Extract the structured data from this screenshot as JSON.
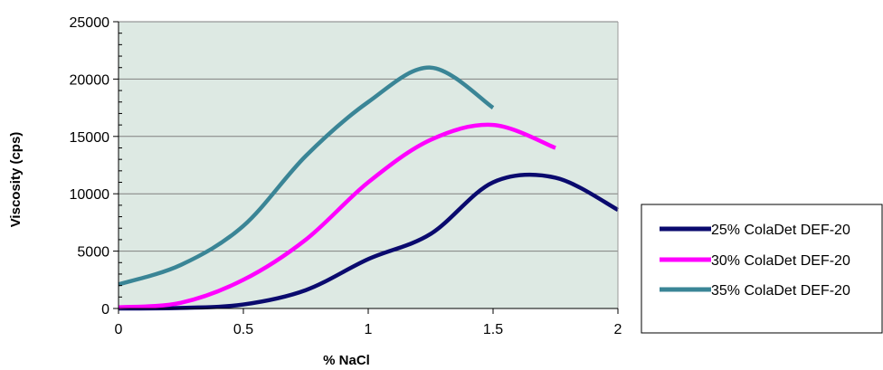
{
  "chart_data": {
    "type": "line",
    "title": "",
    "xlabel": "% NaCl",
    "ylabel": "Viscosity (cps)",
    "xlim": [
      0,
      2
    ],
    "ylim": [
      0,
      25000
    ],
    "x_ticks": [
      "0",
      "0.5",
      "1",
      "1.5",
      "2"
    ],
    "y_ticks": [
      "0",
      "5000",
      "10000",
      "15000",
      "20000",
      "25000"
    ],
    "grid": "horizontal",
    "plot_background": "#dde9e3",
    "legend_position": "right",
    "series": [
      {
        "name": "25% ColaDet DEF-20",
        "color": "#0a0a6e",
        "x": [
          0,
          0.25,
          0.5,
          0.75,
          1,
          1.25,
          1.5,
          1.75,
          2
        ],
        "y": [
          0,
          50,
          350,
          1600,
          4300,
          6500,
          11000,
          11400,
          8600
        ]
      },
      {
        "name": "30% ColaDet DEF-20",
        "color": "#ff00ff",
        "x": [
          0,
          0.25,
          0.5,
          0.75,
          1,
          1.25,
          1.5,
          1.75
        ],
        "y": [
          100,
          500,
          2500,
          6000,
          11000,
          14700,
          16000,
          14000
        ]
      },
      {
        "name": "35% ColaDet DEF-20",
        "color": "#3a8596",
        "x": [
          0,
          0.25,
          0.5,
          0.75,
          1,
          1.25,
          1.5
        ],
        "y": [
          2100,
          3800,
          7200,
          13300,
          18000,
          21000,
          17500
        ]
      }
    ]
  }
}
